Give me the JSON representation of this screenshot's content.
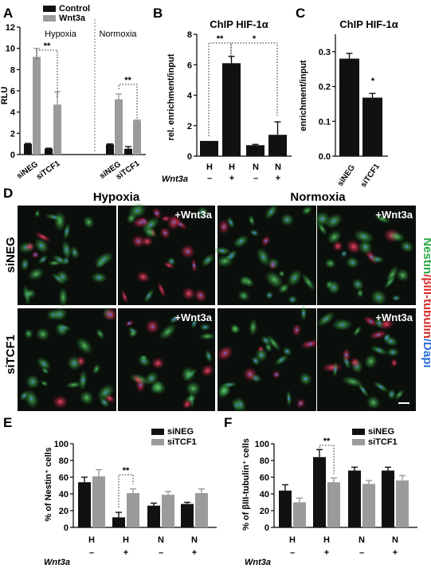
{
  "colors": {
    "black_bar": "#111111",
    "gray_bar": "#9b9b9b",
    "green": "#2aa845",
    "red": "#d62b2b",
    "blue": "#2a6fd6"
  },
  "panel_labels": [
    "A",
    "B",
    "C",
    "D",
    "E",
    "F"
  ],
  "chart_data": [
    {
      "id": "A",
      "type": "bar",
      "ylabel": "RLU",
      "ylim": [
        0,
        12
      ],
      "yticks": [
        0,
        2,
        4,
        6,
        8,
        10,
        12
      ],
      "groups": [
        "Hypoxia",
        "Normoxia"
      ],
      "categories": [
        "siNEG",
        "siTCF1",
        "siNEG",
        "siTCF1"
      ],
      "legend": [
        "Control",
        "Wnt3a"
      ],
      "series": [
        {
          "name": "Control",
          "values": [
            1.0,
            0.55,
            0.95,
            0.55
          ],
          "errors": [
            0.05,
            0.05,
            0.05,
            0.2
          ]
        },
        {
          "name": "Wnt3a",
          "values": [
            9.2,
            4.7,
            5.2,
            3.2
          ],
          "errors": [
            0.8,
            1.2,
            0.5,
            0.05
          ]
        }
      ],
      "significance": [
        "**",
        "**"
      ]
    },
    {
      "id": "B",
      "type": "bar",
      "title": "ChIP HIF-1α",
      "ylabel": "rel. enrichment/input",
      "ylim": [
        0,
        8
      ],
      "yticks": [
        0,
        2,
        4,
        6,
        8
      ],
      "categories": [
        "H",
        "H",
        "N",
        "N"
      ],
      "wnt3a": [
        "–",
        "+",
        "–",
        "+"
      ],
      "row_label": "Wnt3a",
      "values": [
        1.0,
        6.1,
        0.72,
        1.4
      ],
      "errors": [
        0,
        0.45,
        0.05,
        0.85
      ],
      "significance": [
        "**",
        "*"
      ]
    },
    {
      "id": "C",
      "type": "bar",
      "title": "ChIP HIF-1α",
      "ylabel": "enrichment/input",
      "ylim": [
        0,
        0.35
      ],
      "yticks": [
        "0.0",
        "0.1",
        "0.2",
        "0.3"
      ],
      "categories": [
        "siNEG",
        "siTCF1"
      ],
      "values": [
        0.28,
        0.168
      ],
      "errors": [
        0.015,
        0.012
      ],
      "significance": [
        "*"
      ]
    },
    {
      "id": "E",
      "type": "bar",
      "ylabel": "% of Nestin⁺ cells",
      "ylim": [
        0,
        100
      ],
      "yticks": [
        0,
        20,
        40,
        60,
        80,
        100
      ],
      "categories": [
        "H",
        "H",
        "N",
        "N"
      ],
      "wnt3a": [
        "–",
        "+",
        "–",
        "+"
      ],
      "row_label": "Wnt3a",
      "legend": [
        "siNEG",
        "siTCF1"
      ],
      "series": [
        {
          "name": "siNEG",
          "values": [
            54,
            12,
            26,
            28
          ],
          "errors": [
            6,
            6,
            3,
            2
          ]
        },
        {
          "name": "siTCF1",
          "values": [
            61,
            41,
            39,
            41
          ],
          "errors": [
            8,
            5,
            4,
            5
          ]
        }
      ],
      "significance": [
        "**"
      ]
    },
    {
      "id": "F",
      "type": "bar",
      "ylabel": "% of βIII-tubulin⁺ cells",
      "ylim": [
        0,
        100
      ],
      "yticks": [
        0,
        20,
        40,
        60,
        80,
        100
      ],
      "categories": [
        "H",
        "H",
        "N",
        "N"
      ],
      "wnt3a": [
        "–",
        "+",
        "–",
        "+"
      ],
      "row_label": "Wnt3a",
      "legend": [
        "siNEG",
        "siTCF1"
      ],
      "series": [
        {
          "name": "siNEG",
          "values": [
            44,
            84,
            68,
            68
          ],
          "errors": [
            7,
            9,
            4,
            4
          ]
        },
        {
          "name": "siTCF1",
          "values": [
            30,
            54,
            52,
            56
          ],
          "errors": [
            5,
            5,
            4,
            6
          ]
        }
      ],
      "significance": [
        "**"
      ]
    }
  ],
  "micrographs": {
    "columns": [
      "Hypoxia",
      "Normoxia"
    ],
    "rows": [
      "siNEG",
      "siTCF1"
    ],
    "wnt_label": "+Wnt3a",
    "side_legend": [
      "Nestin",
      "/βIII-tubulin",
      "/Dapi"
    ]
  }
}
